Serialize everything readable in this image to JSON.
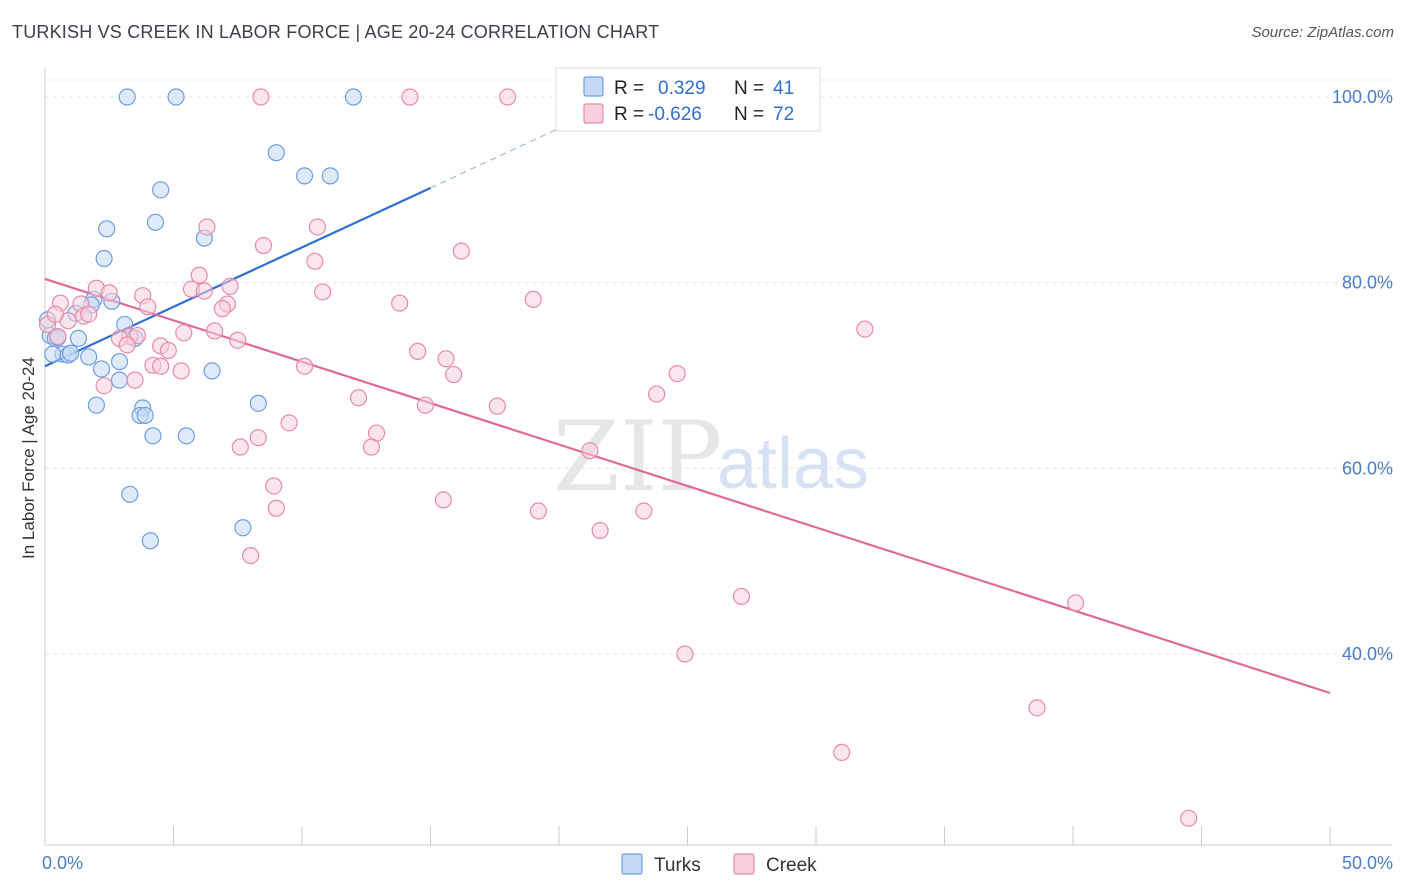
{
  "title": "TURKISH VS CREEK IN LABOR FORCE | AGE 20-24 CORRELATION CHART",
  "source": "Source: ZipAtlas.com",
  "watermark": {
    "part1": "ZIP",
    "part2": "atlas"
  },
  "colors": {
    "turks": "#6d9de3",
    "turks_fill": "#c5d9f4",
    "creek": "#e88aaa",
    "creek_fill": "#f8d0dd",
    "turks_line": "#2f6fd1",
    "creek_line": "#e0699a"
  },
  "legend": {
    "r_label": "R =",
    "n_label": "N =",
    "turks": {
      "r": "0.329",
      "n": "41"
    },
    "creek": {
      "r": "-0.626",
      "n": "72"
    }
  },
  "bottom_legend": {
    "turks": "Turks",
    "creek": "Creek"
  },
  "chart_data": {
    "type": "scatter",
    "title": "TURKISH VS CREEK IN LABOR FORCE | AGE 20-24 CORRELATION CHART",
    "xlabel": "",
    "ylabel": "In Labor Force | Age 20-24",
    "xlim": [
      0,
      50
    ],
    "ylim": [
      20,
      102
    ],
    "x_tick_labels": [
      "0.0%",
      "50.0%"
    ],
    "y_ticks": [
      40,
      60,
      80,
      100
    ],
    "y_tick_labels": [
      "40.0%",
      "60.0%",
      "80.0%",
      "100.0%"
    ],
    "series": [
      {
        "name": "Turks",
        "points": [
          [
            3.2,
            100
          ],
          [
            5.1,
            100
          ],
          [
            12.0,
            100
          ],
          [
            9.0,
            94
          ],
          [
            10.1,
            91.5
          ],
          [
            11.1,
            91.5
          ],
          [
            4.5,
            90
          ],
          [
            4.3,
            86.5
          ],
          [
            2.4,
            85.8
          ],
          [
            6.2,
            84.8
          ],
          [
            2.3,
            82.6
          ],
          [
            1.9,
            78.2
          ],
          [
            2.6,
            78
          ],
          [
            1.8,
            77.6
          ],
          [
            1.2,
            76.7
          ],
          [
            0.1,
            76
          ],
          [
            3.1,
            75.5
          ],
          [
            0.2,
            74.3
          ],
          [
            0.4,
            74
          ],
          [
            1.3,
            74
          ],
          [
            3.5,
            74
          ],
          [
            0.7,
            72.3
          ],
          [
            0.3,
            72.3
          ],
          [
            2.9,
            71.5
          ],
          [
            0.9,
            72.2
          ],
          [
            1.7,
            72
          ],
          [
            6.5,
            70.5
          ],
          [
            2.2,
            70.7
          ],
          [
            2.9,
            69.5
          ],
          [
            2.0,
            66.8
          ],
          [
            8.3,
            67
          ],
          [
            3.8,
            66.5
          ],
          [
            3.7,
            65.7
          ],
          [
            3.9,
            65.7
          ],
          [
            4.2,
            63.5
          ],
          [
            5.5,
            63.5
          ],
          [
            3.3,
            57.2
          ],
          [
            7.7,
            53.6
          ],
          [
            4.1,
            52.2
          ],
          [
            0.5,
            74.1
          ],
          [
            1.0,
            72.4
          ]
        ]
      },
      {
        "name": "Creek",
        "points": [
          [
            8.4,
            100
          ],
          [
            14.2,
            100
          ],
          [
            18.0,
            100
          ],
          [
            6.3,
            86
          ],
          [
            10.6,
            86
          ],
          [
            8.5,
            84
          ],
          [
            16.2,
            83.4
          ],
          [
            10.5,
            82.3
          ],
          [
            6.0,
            80.8
          ],
          [
            2.0,
            79.4
          ],
          [
            7.2,
            79.6
          ],
          [
            5.7,
            79.3
          ],
          [
            6.2,
            79.1
          ],
          [
            10.8,
            79.0
          ],
          [
            3.8,
            78.6
          ],
          [
            0.6,
            77.8
          ],
          [
            1.4,
            77.7
          ],
          [
            7.1,
            77.7
          ],
          [
            13.8,
            77.8
          ],
          [
            19.0,
            78.2
          ],
          [
            6.9,
            77.2
          ],
          [
            4.0,
            77.4
          ],
          [
            1.5,
            76.4
          ],
          [
            1.7,
            76.6
          ],
          [
            0.9,
            75.9
          ],
          [
            0.1,
            75.5
          ],
          [
            31.9,
            75.0
          ],
          [
            6.6,
            74.8
          ],
          [
            5.4,
            74.6
          ],
          [
            3.3,
            74.2
          ],
          [
            2.9,
            74.0
          ],
          [
            3.6,
            74.3
          ],
          [
            0.5,
            74.2
          ],
          [
            7.5,
            73.8
          ],
          [
            3.2,
            73.3
          ],
          [
            4.5,
            73.2
          ],
          [
            4.8,
            72.7
          ],
          [
            14.5,
            72.6
          ],
          [
            15.6,
            71.8
          ],
          [
            4.2,
            71.1
          ],
          [
            4.5,
            71.0
          ],
          [
            10.1,
            71.0
          ],
          [
            5.3,
            70.5
          ],
          [
            15.9,
            70.1
          ],
          [
            24.6,
            70.2
          ],
          [
            3.5,
            69.5
          ],
          [
            2.3,
            68.9
          ],
          [
            23.8,
            68.0
          ],
          [
            12.2,
            67.6
          ],
          [
            14.8,
            66.8
          ],
          [
            17.6,
            66.7
          ],
          [
            9.5,
            64.9
          ],
          [
            12.9,
            63.8
          ],
          [
            8.3,
            63.3
          ],
          [
            7.6,
            62.3
          ],
          [
            12.7,
            62.3
          ],
          [
            21.2,
            61.9
          ],
          [
            8.9,
            58.1
          ],
          [
            9.0,
            55.7
          ],
          [
            15.5,
            56.6
          ],
          [
            19.2,
            55.4
          ],
          [
            23.3,
            55.4
          ],
          [
            21.6,
            53.3
          ],
          [
            8.0,
            50.6
          ],
          [
            27.1,
            46.2
          ],
          [
            40.1,
            45.5
          ],
          [
            24.9,
            40.0
          ],
          [
            38.6,
            34.2
          ],
          [
            31.0,
            29.4
          ],
          [
            44.5,
            22.3
          ],
          [
            0.4,
            76.6
          ],
          [
            2.5,
            78.9
          ]
        ]
      }
    ],
    "trendlines": [
      {
        "name": "Turks",
        "x0": 0,
        "y0": 71.0,
        "x1": 15.0,
        "y1": 90.2,
        "dashed_to_x": 22.0,
        "dashed_to_y": 99.2
      },
      {
        "name": "Creek",
        "x0": 0,
        "y0": 80.4,
        "x1": 50.0,
        "y1": 35.8
      }
    ],
    "legend_position": "top-center",
    "grid": true
  }
}
